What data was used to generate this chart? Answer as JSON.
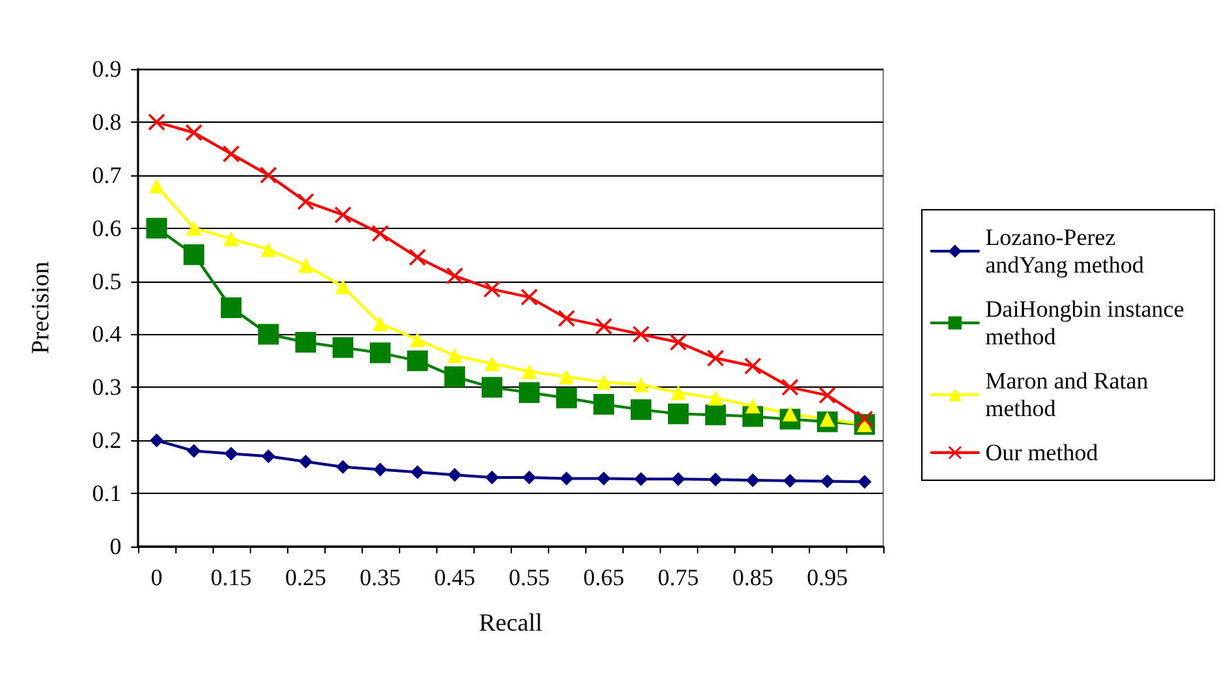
{
  "chart_data": {
    "type": "line",
    "xlabel": "Recall",
    "ylabel": "Precision",
    "categories": [
      "0",
      null,
      "0.15",
      null,
      "0.25",
      null,
      "0.35",
      null,
      "0.45",
      null,
      "0.55",
      null,
      "0.65",
      null,
      "0.75",
      null,
      "0.85",
      null,
      "0.95",
      null
    ],
    "ylim": [
      0,
      0.9
    ],
    "yticks": [
      0,
      0.1,
      0.2,
      0.3,
      0.4,
      0.5,
      0.6,
      0.7,
      0.8,
      0.9
    ],
    "grid": "y",
    "legend": "right",
    "series": [
      {
        "name": "Lozano-Perez andYang method",
        "color": "#000080",
        "marker": "diamond",
        "values": [
          0.2,
          0.18,
          0.175,
          0.17,
          0.16,
          0.15,
          0.145,
          0.14,
          0.135,
          0.13,
          0.13,
          0.128,
          0.128,
          0.127,
          0.127,
          0.126,
          0.125,
          0.124,
          0.123,
          0.122
        ]
      },
      {
        "name": "DaiHongbin instance method",
        "color": "#008000",
        "marker": "square",
        "values": [
          0.6,
          0.55,
          0.45,
          0.4,
          0.385,
          0.375,
          0.365,
          0.35,
          0.32,
          0.3,
          0.29,
          0.28,
          0.268,
          0.258,
          0.25,
          0.248,
          0.245,
          0.24,
          0.235,
          0.23
        ]
      },
      {
        "name": "Maron and Ratan method",
        "color": "#ffff00",
        "marker": "triangle",
        "values": [
          0.68,
          0.6,
          0.58,
          0.56,
          0.53,
          0.49,
          0.42,
          0.39,
          0.36,
          0.345,
          0.33,
          0.32,
          0.31,
          0.305,
          0.29,
          0.28,
          0.265,
          0.25,
          0.24,
          0.23
        ]
      },
      {
        "name": "Our method",
        "color": "#ff0000",
        "marker": "cross",
        "values": [
          0.8,
          0.78,
          0.74,
          0.7,
          0.65,
          0.625,
          0.59,
          0.545,
          0.51,
          0.485,
          0.47,
          0.43,
          0.415,
          0.4,
          0.385,
          0.355,
          0.34,
          0.3,
          0.285,
          0.24
        ]
      }
    ]
  }
}
